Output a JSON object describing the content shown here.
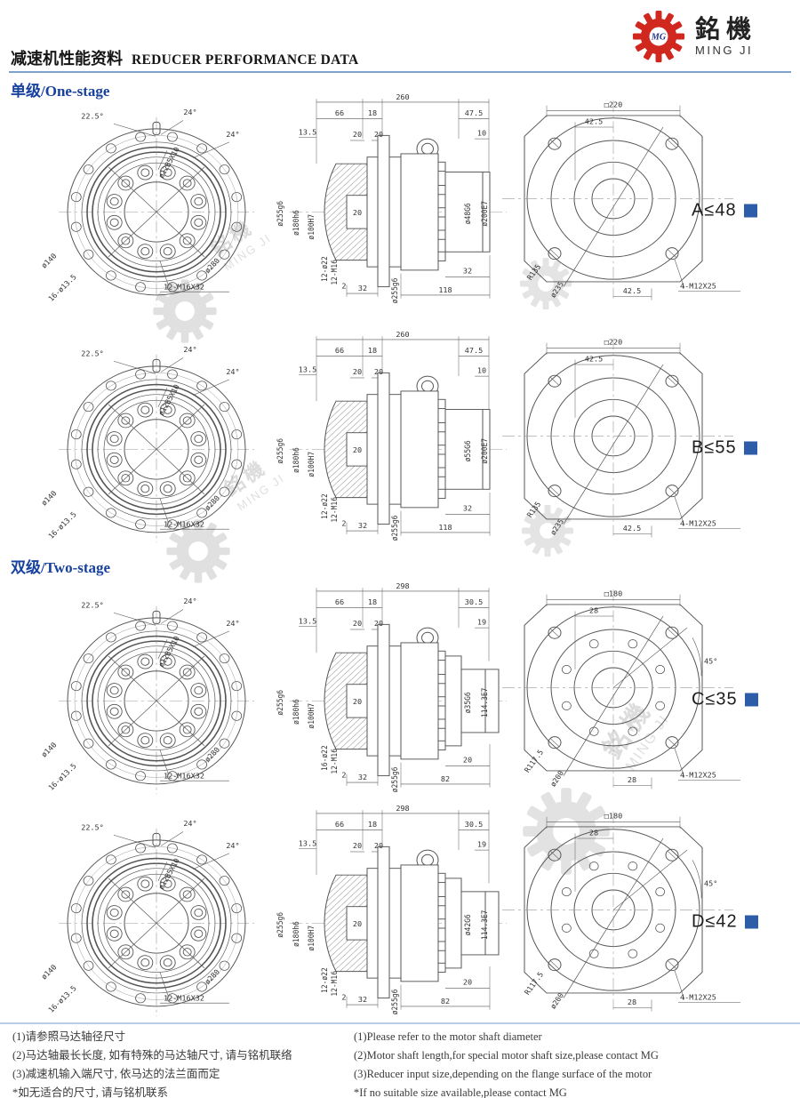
{
  "header": {
    "title_zh": "减速机性能资料",
    "title_en": "REDUCER PERFORMANCE DATA"
  },
  "logo": {
    "name_zh": "銘機",
    "name_en": "MING JI",
    "monogram": "MG"
  },
  "watermark": {
    "zh": "銘機",
    "en": "MING JI"
  },
  "colors": {
    "title_blue": "#16419e",
    "accent_blue": "#2d5da8",
    "logo_red": "#d0281e",
    "watermark_pink": "#eeb3b1",
    "rule_blue": "#7fa3cc",
    "footer_rule_blue": "#b9cfe8"
  },
  "sections": [
    {
      "title": "单级/One-stage",
      "rows": [
        {
          "rating": "A≤48",
          "front": {
            "angle_left": "22.5°",
            "angle_mid": "24°",
            "angle_right": "24°",
            "pin_label": "ø12B5X10",
            "bolt_circle": "ø140",
            "outer_holes": "16-ø13.5",
            "outer_dia": "ø280",
            "inner_bolts": "12-M16X32"
          },
          "side": {
            "total": "260",
            "seg1": "66",
            "seg2": "18",
            "off1": "13.5",
            "plate1": "20",
            "plate2": "20",
            "right1": "47.5",
            "right2": "10",
            "dia_out": "ø255g6",
            "dia_mid": "ø180h6",
            "dia_bore": "ø100H7",
            "depth": "20",
            "holes1": "12-ø22",
            "holes2": "12-M16",
            "edge": "2",
            "width1": "32",
            "dia_out2": "ø255g6",
            "shaft": "ø48G6",
            "spigot": "ø200E7",
            "span": "118",
            "width2": "32"
          },
          "rear": {
            "square": "□220",
            "offset_top": "42.5",
            "offset_bottom": "42.5",
            "radius": "R135",
            "pilot": "ø235",
            "bolts": "4-M12X25"
          }
        },
        {
          "rating": "B≤55",
          "front": {
            "angle_left": "22.5°",
            "angle_mid": "24°",
            "angle_right": "24°",
            "pin_label": "ø12B5X10",
            "bolt_circle": "ø140",
            "outer_holes": "16-ø13.5",
            "outer_dia": "ø280",
            "inner_bolts": "12-M16X32"
          },
          "side": {
            "total": "260",
            "seg1": "66",
            "seg2": "18",
            "off1": "13.5",
            "plate1": "20",
            "plate2": "20",
            "right1": "47.5",
            "right2": "10",
            "dia_out": "ø255g6",
            "dia_mid": "ø180h6",
            "dia_bore": "ø100H7",
            "depth": "20",
            "holes1": "12-ø22",
            "holes2": "12-M16",
            "edge": "2",
            "width1": "32",
            "dia_out2": "ø255g6",
            "shaft": "ø55G6",
            "spigot": "ø200E7",
            "span": "118",
            "width2": "32"
          },
          "rear": {
            "square": "□220",
            "offset_top": "42.5",
            "offset_bottom": "42.5",
            "radius": "R135",
            "pilot": "ø235",
            "bolts": "4-M12X25"
          }
        }
      ]
    },
    {
      "title": "双级/Two-stage",
      "rows": [
        {
          "rating": "C≤35",
          "front": {
            "angle_left": "22.5°",
            "angle_mid": "24°",
            "angle_right": "24°",
            "pin_label": "ø12B5X10",
            "bolt_circle": "ø140",
            "outer_holes": "16-ø13.5",
            "outer_dia": "ø280",
            "inner_bolts": "12-M16X32"
          },
          "side": {
            "total": "298",
            "seg1": "66",
            "seg2": "18",
            "off1": "13.5",
            "plate1": "20",
            "plate2": "20",
            "right1": "30.5",
            "right2": "19",
            "dia_out": "ø255g6",
            "dia_mid": "ø180h6",
            "dia_bore": "ø100H7",
            "depth": "20",
            "holes1": "16-ø22",
            "holes2": "12-M16",
            "edge": "2",
            "width1": "32",
            "dia_out2": "ø255g6",
            "shaft": "ø35G6",
            "spigot": "114.3E7",
            "span": "82",
            "width2": "20"
          },
          "rear": {
            "square": "□180",
            "offset_top": "28",
            "offset_bottom": "28",
            "radius": "R117.5",
            "pilot": "ø200",
            "bolts": "4-M12X25",
            "angle": "45°"
          }
        },
        {
          "rating": "D≤42",
          "front": {
            "angle_left": "22.5°",
            "angle_mid": "24°",
            "angle_right": "24°",
            "pin_label": "ø12B5X10",
            "bolt_circle": "ø140",
            "outer_holes": "16-ø13.5",
            "outer_dia": "ø280",
            "inner_bolts": "12-M16X32"
          },
          "side": {
            "total": "298",
            "seg1": "66",
            "seg2": "18",
            "off1": "13.5",
            "plate1": "20",
            "plate2": "20",
            "right1": "30.5",
            "right2": "19",
            "dia_out": "ø255g6",
            "dia_mid": "ø180h6",
            "dia_bore": "ø100H7",
            "depth": "20",
            "holes1": "12-ø22",
            "holes2": "12-M16",
            "edge": "2",
            "width1": "32",
            "dia_out2": "ø255g6",
            "shaft": "ø42G6",
            "spigot": "114.3E7",
            "span": "82",
            "width2": "20"
          },
          "rear": {
            "square": "□180",
            "offset_top": "28",
            "offset_bottom": "28",
            "radius": "R117.5",
            "pilot": "ø200",
            "bolts": "4-M12X25",
            "angle": "45°"
          }
        }
      ]
    }
  ],
  "footer": {
    "zh": [
      "(1)请参照马达轴径尺寸",
      "(2)马达轴最长长度, 如有特殊的马达轴尺寸, 请与铭机联络",
      "(3)减速机输入端尺寸, 依马达的法兰面而定",
      "*如无适合的尺寸, 请与铭机联系"
    ],
    "en": [
      "(1)Please refer to the motor shaft diameter",
      "(2)Motor shaft length,for special motor shaft size,please contact MG",
      "(3)Reducer input size,depending on the flange surface of the motor",
      "*If no suitable size available,please contact MG"
    ]
  }
}
